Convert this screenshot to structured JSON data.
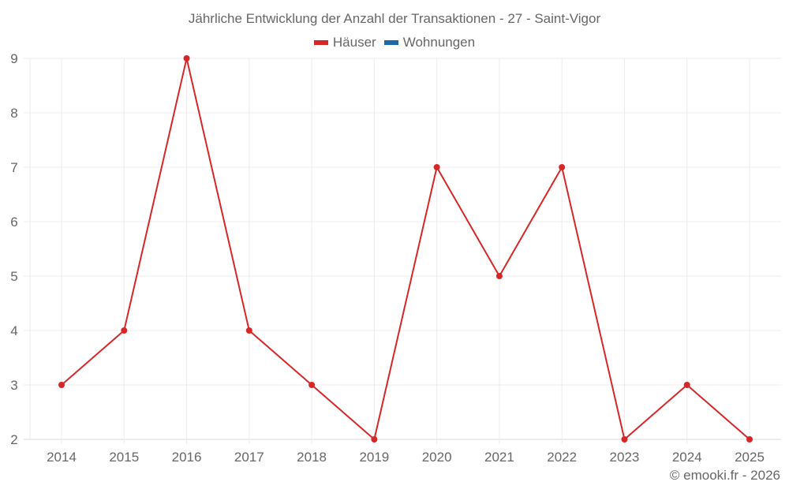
{
  "chart_data": {
    "type": "line",
    "title": "Jährliche Entwicklung der Anzahl der Transaktionen - 27 - Saint-Vigor",
    "categories": [
      "2014",
      "2015",
      "2016",
      "2017",
      "2018",
      "2019",
      "2020",
      "2021",
      "2022",
      "2023",
      "2024",
      "2025"
    ],
    "series": [
      {
        "name": "Häuser",
        "color": "#d62728",
        "values": [
          3,
          4,
          9,
          4,
          3,
          2,
          7,
          5,
          7,
          2,
          3,
          2
        ]
      },
      {
        "name": "Wohnungen",
        "color": "#1f6aa5",
        "values": []
      }
    ],
    "xlabel": "",
    "ylabel": "",
    "ylim": [
      2,
      9
    ],
    "yticks": [
      "2",
      "3",
      "4",
      "5",
      "6",
      "7",
      "8",
      "9"
    ],
    "grid": true,
    "legend_position": "top"
  },
  "title": "Jährliche Entwicklung der Anzahl der Transaktionen - 27 - Saint-Vigor",
  "legend": [
    {
      "label": "Häuser",
      "color": "#d62728"
    },
    {
      "label": "Wohnungen",
      "color": "#1f6aa5"
    }
  ],
  "credit": "© emooki.fr - 2026"
}
